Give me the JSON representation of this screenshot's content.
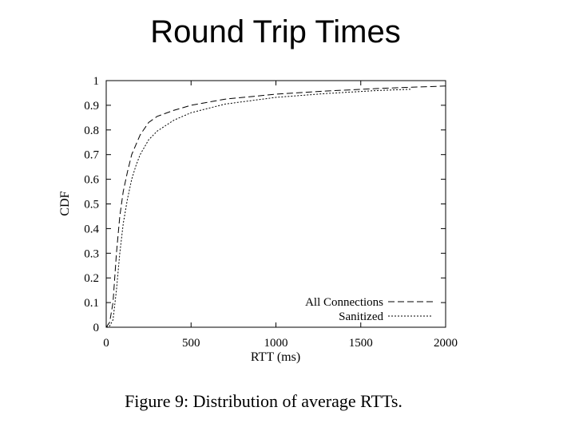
{
  "slide": {
    "title": "Round Trip Times",
    "caption": "Figure 9: Distribution of average RTTs."
  },
  "chart_data": {
    "type": "line",
    "title": "",
    "xlabel": "RTT (ms)",
    "ylabel": "CDF",
    "xlim": [
      0,
      2000
    ],
    "ylim": [
      0,
      1
    ],
    "x_ticks": [
      0,
      500,
      1000,
      1500,
      2000
    ],
    "y_ticks": [
      0,
      0.1,
      0.2,
      0.3,
      0.4,
      0.5,
      0.6,
      0.7,
      0.8,
      0.9,
      1
    ],
    "y_tick_labels": [
      "0",
      "0.1",
      "0.2",
      "0.3",
      "0.4",
      "0.5",
      "0.6",
      "0.7",
      "0.8",
      "0.9",
      "1"
    ],
    "grid": false,
    "legend_position": "bottom-right",
    "series": [
      {
        "name": "All Connections",
        "style": "dashed",
        "color": "#000000",
        "x": [
          0,
          20,
          40,
          60,
          80,
          100,
          125,
          150,
          175,
          200,
          250,
          300,
          400,
          500,
          700,
          1000,
          1300,
          1600,
          1800,
          2000
        ],
        "y": [
          0,
          0.02,
          0.1,
          0.3,
          0.45,
          0.55,
          0.63,
          0.7,
          0.74,
          0.78,
          0.83,
          0.855,
          0.88,
          0.9,
          0.925,
          0.945,
          0.958,
          0.968,
          0.973,
          0.978
        ]
      },
      {
        "name": "Sanitized",
        "style": "dotted",
        "color": "#000000",
        "x": [
          0,
          20,
          40,
          60,
          80,
          100,
          125,
          150,
          175,
          200,
          250,
          300,
          400,
          500,
          700,
          1000,
          1300,
          1600,
          1800
        ],
        "y": [
          0,
          0.005,
          0.03,
          0.15,
          0.3,
          0.42,
          0.52,
          0.6,
          0.655,
          0.7,
          0.76,
          0.795,
          0.84,
          0.87,
          0.905,
          0.932,
          0.948,
          0.96,
          0.965
        ]
      }
    ]
  }
}
